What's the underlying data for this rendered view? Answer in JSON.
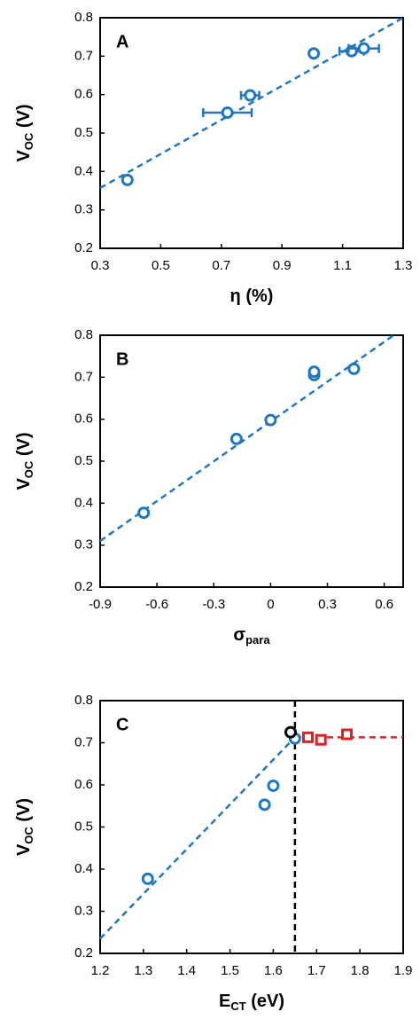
{
  "chart_data": [
    {
      "type": "scatter",
      "label": "A",
      "xlabel": [
        "η  (%)"
      ],
      "ylabel": [
        "V",
        "OC",
        " (V)"
      ],
      "xlim": [
        0.3,
        1.3
      ],
      "xticks": [
        0.3,
        0.5,
        0.7,
        0.9,
        1.1,
        1.3
      ],
      "ylim": [
        0.2,
        0.8
      ],
      "yticks": [
        0.2,
        0.3,
        0.4,
        0.5,
        0.6,
        0.7,
        0.8
      ],
      "series": [
        {
          "color": "#1f77c4",
          "marker": "circle",
          "x": [
            0.39,
            0.72,
            0.795,
            1.005,
            1.13,
            1.17
          ],
          "values": [
            0.378,
            0.553,
            0.598,
            0.707,
            0.713,
            0.72
          ],
          "xerr": [
            0.0,
            0.08,
            0.03,
            0.01,
            0.04,
            0.05
          ]
        }
      ],
      "lines": [
        {
          "color": "#1f77c4",
          "x": [
            0.3,
            1.3
          ],
          "values": [
            0.357,
            0.8
          ]
        }
      ]
    },
    {
      "type": "scatter",
      "label": "B",
      "xlabel": [
        "σ",
        "para"
      ],
      "ylabel": [
        "V",
        "OC",
        " (V)"
      ],
      "xlim": [
        -0.9,
        0.7
      ],
      "xticks": [
        -0.9,
        -0.6,
        -0.3,
        0,
        0.3,
        0.6
      ],
      "ylim": [
        0.2,
        0.8
      ],
      "yticks": [
        0.2,
        0.3,
        0.4,
        0.5,
        0.6,
        0.7,
        0.8
      ],
      "series": [
        {
          "color": "#1f77c4",
          "marker": "circle",
          "x": [
            -0.67,
            -0.18,
            0.0,
            0.23,
            0.23,
            0.44
          ],
          "values": [
            0.377,
            0.553,
            0.598,
            0.705,
            0.713,
            0.72
          ]
        }
      ],
      "lines": [
        {
          "color": "#1f77c4",
          "x": [
            -0.9,
            0.65
          ],
          "values": [
            0.31,
            0.8
          ]
        }
      ]
    },
    {
      "type": "scatter",
      "label": "C",
      "xlabel": [
        "E",
        "CT",
        " (eV)"
      ],
      "ylabel": [
        "V",
        "OC",
        " (V)"
      ],
      "xlim": [
        1.2,
        1.9
      ],
      "xticks": [
        1.2,
        1.3,
        1.4,
        1.5,
        1.6,
        1.7,
        1.8,
        1.9
      ],
      "ylim": [
        0.2,
        0.8
      ],
      "yticks": [
        0.2,
        0.3,
        0.4,
        0.5,
        0.6,
        0.7,
        0.8
      ],
      "series": [
        {
          "color": "#1f77c4",
          "marker": "circle",
          "x": [
            1.31,
            1.58,
            1.6,
            1.65
          ],
          "values": [
            0.377,
            0.553,
            0.598,
            0.71
          ]
        },
        {
          "color": "#000000",
          "marker": "circle",
          "x": [
            1.64
          ],
          "values": [
            0.725
          ]
        },
        {
          "color": "#e02020",
          "marker": "square",
          "x": [
            1.68,
            1.71,
            1.77
          ],
          "values": [
            0.713,
            0.707,
            0.72
          ]
        }
      ],
      "lines": [
        {
          "color": "#1f77c4",
          "x": [
            1.2,
            1.65
          ],
          "values": [
            0.235,
            0.713
          ]
        },
        {
          "color": "#e02020",
          "x": [
            1.65,
            1.9
          ],
          "values": [
            0.713,
            0.713
          ]
        }
      ],
      "vline": {
        "x": 1.65,
        "color": "#000000"
      }
    }
  ]
}
